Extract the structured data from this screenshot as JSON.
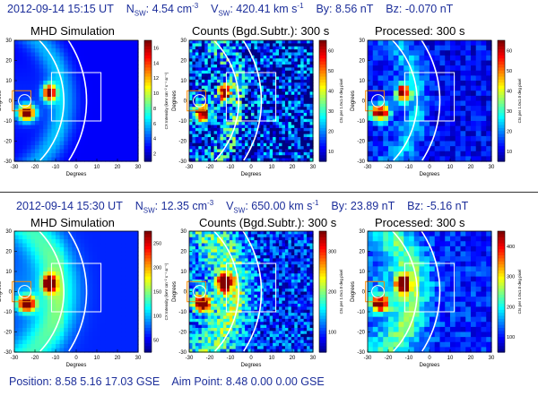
{
  "rows": [
    {
      "timestamp": "2012-09-14 15:15 UT",
      "nsw_label": "N",
      "nsw_sub": "SW",
      "nsw_value": ": 4.54 cm",
      "nsw_exp": "-3",
      "vsw_label": "V",
      "vsw_sub": "SW",
      "vsw_value": ": 420.41 km s",
      "vsw_exp": "-1",
      "by": "By: 8.56 nT",
      "bz": "Bz: -0.070 nT",
      "panel_titles": [
        "MHD Simulation",
        "Counts (Bgd.Subtr.): 300 s",
        "Processed: 300 s"
      ],
      "colorbar_labels": [
        "CX Intensity (keV cm⁻² s⁻¹ sr⁻¹)",
        "Cts per 1.0x1.0 deg pixel",
        "Cts per 1.0x1.0 deg pixel"
      ],
      "colorbar_ticks": [
        [
          "16",
          "14",
          "12",
          "10",
          "8",
          "6",
          "4",
          "2"
        ],
        [
          "60",
          "50",
          "40",
          "30",
          "20",
          "10"
        ],
        [
          "60",
          "50",
          "40",
          "30",
          "20",
          "10"
        ]
      ]
    },
    {
      "timestamp": "2012-09-14 15:30 UT",
      "nsw_label": "N",
      "nsw_sub": "SW",
      "nsw_value": ": 12.35 cm",
      "nsw_exp": "-3",
      "vsw_label": "V",
      "vsw_sub": "SW",
      "vsw_value": ": 650.00 km s",
      "vsw_exp": "-1",
      "by": "By: 23.89 nT",
      "bz": "Bz: -5.16 nT",
      "panel_titles": [
        "MHD Simulation",
        "Counts (Bgd.Subtr.): 300 s",
        "Processed: 300 s"
      ],
      "colorbar_labels": [
        "CX Intensity (keV cm⁻² s⁻¹ sr⁻¹)",
        "Cts per 1.0x1.0 deg pixel",
        "Cts per 1.0x1.0 deg pixel"
      ],
      "colorbar_ticks": [
        [
          "250",
          "200",
          "150",
          "100",
          "50"
        ],
        [
          "300",
          "200",
          "100"
        ],
        [
          "400",
          "300",
          "200",
          "100"
        ]
      ]
    }
  ],
  "footer": {
    "position_label": "Position:",
    "position_values": "8.58  5.16  17.03",
    "position_frame": "GSE",
    "aim_label": "Aim Point:",
    "aim_values": "8.48  0.00  0.00",
    "aim_frame": "GSE"
  },
  "chart_data": {
    "type": "heatmap",
    "axis": {
      "xlabel": "Degrees",
      "ylabel": "Degrees",
      "xlim": [
        -30,
        30
      ],
      "ylim": [
        -30,
        30
      ],
      "xticks": [
        "-30",
        "-20",
        "-10",
        "0",
        "10",
        "20",
        "30"
      ],
      "yticks": [
        "30",
        "20",
        "10",
        "0",
        "-10",
        "-20",
        "-30"
      ]
    },
    "features": {
      "blob_upper": {
        "x": -13,
        "y": 4
      },
      "blob_lower": {
        "x": -24,
        "y": -6
      },
      "earth_circle": {
        "x": -25,
        "y": 0,
        "r": 3
      },
      "small_box": {
        "x0": -31,
        "y0": -5,
        "x1": -22,
        "y1": 5
      },
      "fov_box": {
        "x0": -12,
        "y0": -10,
        "x1": 12,
        "y1": 14
      }
    }
  }
}
